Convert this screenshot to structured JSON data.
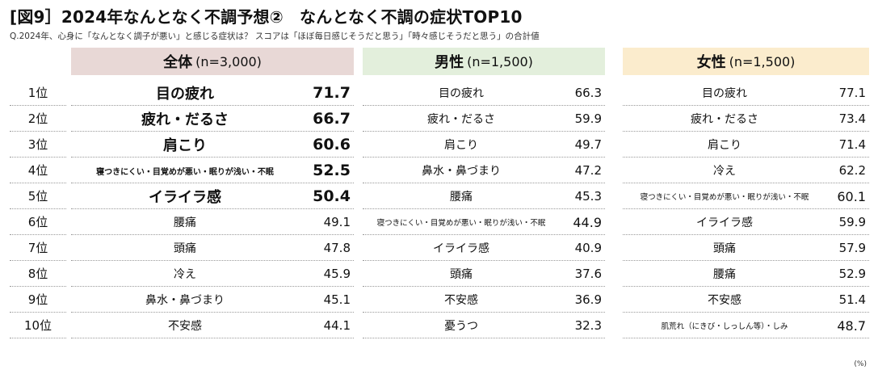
{
  "title": "[図9］2024年なんとなく不調予想②　なんとなく不調の症状TOP10",
  "subtitle": "Q.2024年、心身に「なんとなく調子が悪い」と感じる症状は？ スコアは「ほぼ毎日感じそうだと思う」「時々感じそうだと思う」の合計値",
  "unit": "(%)",
  "headers": {
    "all": {
      "label": "全体",
      "n": "(n=3,000)"
    },
    "male": {
      "label": "男性",
      "n": "(n=1,500)"
    },
    "female": {
      "label": "女性",
      "n": "(n=1,500)"
    }
  },
  "ranks": [
    "1位",
    "2位",
    "3位",
    "4位",
    "5位",
    "6位",
    "7位",
    "8位",
    "9位",
    "10位"
  ],
  "all": [
    {
      "label": "目の疲れ",
      "value": "71.7"
    },
    {
      "label": "疲れ・だるさ",
      "value": "66.7"
    },
    {
      "label": "肩こり",
      "value": "60.6"
    },
    {
      "label": "寝つきにくい・目覚めが悪い・眠りが浅い・不眠",
      "value": "52.5"
    },
    {
      "label": "イライラ感",
      "value": "50.4"
    },
    {
      "label": "腰痛",
      "value": "49.1"
    },
    {
      "label": "頭痛",
      "value": "47.8"
    },
    {
      "label": "冷え",
      "value": "45.9"
    },
    {
      "label": "鼻水・鼻づまり",
      "value": "45.1"
    },
    {
      "label": "不安感",
      "value": "44.1"
    }
  ],
  "male": [
    {
      "label": "目の疲れ",
      "value": "66.3"
    },
    {
      "label": "疲れ・だるさ",
      "value": "59.9"
    },
    {
      "label": "肩こり",
      "value": "49.7"
    },
    {
      "label": "鼻水・鼻づまり",
      "value": "47.2"
    },
    {
      "label": "腰痛",
      "value": "45.3"
    },
    {
      "label": "寝つきにくい・目覚めが悪い・眠りが浅い・不眠",
      "value": "44.9"
    },
    {
      "label": "イライラ感",
      "value": "40.9"
    },
    {
      "label": "頭痛",
      "value": "37.6"
    },
    {
      "label": "不安感",
      "value": "36.9"
    },
    {
      "label": "憂うつ",
      "value": "32.3"
    }
  ],
  "female": [
    {
      "label": "目の疲れ",
      "value": "77.1"
    },
    {
      "label": "疲れ・だるさ",
      "value": "73.4"
    },
    {
      "label": "肩こり",
      "value": "71.4"
    },
    {
      "label": "冷え",
      "value": "62.2"
    },
    {
      "label": "寝つきにくい・目覚めが悪い・眠りが浅い・不眠",
      "value": "60.1"
    },
    {
      "label": "イライラ感",
      "value": "59.9"
    },
    {
      "label": "頭痛",
      "value": "57.9"
    },
    {
      "label": "腰痛",
      "value": "52.9"
    },
    {
      "label": "不安感",
      "value": "51.4"
    },
    {
      "label": "肌荒れ（にきび・しっしん等）・しみ",
      "value": "48.7"
    }
  ]
}
